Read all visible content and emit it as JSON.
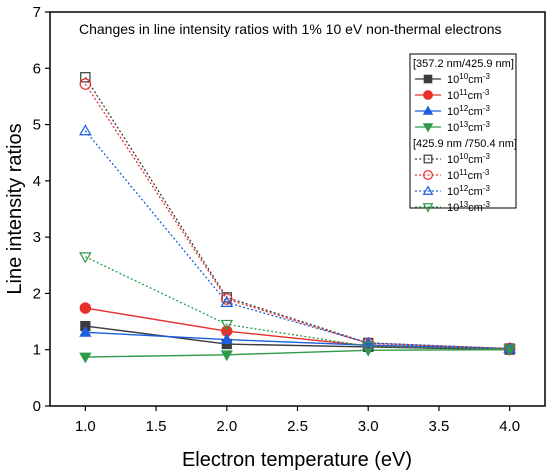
{
  "chart_data": {
    "type": "line",
    "title": "Changes in line intensity ratios with 1% 10 eV  non-thermal electrons",
    "xlabel": "Electron temperature (eV)",
    "ylabel": "Line intensity ratios",
    "xlim": [
      0.75,
      4.25
    ],
    "ylim": [
      0,
      7
    ],
    "xticks": [
      "1.0",
      "1.5",
      "2.0",
      "2.5",
      "3.0",
      "3.5",
      "4.0"
    ],
    "yticks": [
      "0",
      "1",
      "2",
      "3",
      "4",
      "5",
      "6",
      "7"
    ],
    "x": [
      1.0,
      2.0,
      3.0,
      4.0
    ],
    "grid": false,
    "legend_position": "top-right",
    "legend_groups": [
      {
        "header": "[357.2 nm/425.9 nm]",
        "series": [
          {
            "name": "10",
            "exp": "10",
            "unit": "cm",
            "unit_exp": "-3",
            "color": "#3c3c3c",
            "marker": "square",
            "filled": true,
            "dashed": false,
            "values": [
              1.42,
              1.1,
              1.05,
              1.0
            ]
          },
          {
            "name": "10",
            "exp": "11",
            "unit": "cm",
            "unit_exp": "-3",
            "color": "#e8302a",
            "marker": "circle",
            "filled": true,
            "dashed": false,
            "values": [
              1.74,
              1.33,
              1.07,
              1.02
            ]
          },
          {
            "name": "10",
            "exp": "12",
            "unit": "cm",
            "unit_exp": "-3",
            "color": "#1a5fe0",
            "marker": "triangle-up",
            "filled": true,
            "dashed": false,
            "values": [
              1.31,
              1.18,
              1.08,
              1.02
            ]
          },
          {
            "name": "10",
            "exp": "13",
            "unit": "cm",
            "unit_exp": "-3",
            "color": "#2e9a4a",
            "marker": "triangle-down",
            "filled": true,
            "dashed": false,
            "values": [
              0.87,
              0.91,
              0.99,
              1.0
            ]
          }
        ]
      },
      {
        "header": "[425.9 nm /750.4 nm]",
        "series": [
          {
            "name": "10",
            "exp": "10",
            "unit": "cm",
            "unit_exp": "-3",
            "color": "#3c3c3c",
            "marker": "square",
            "filled": false,
            "dashed": true,
            "values": [
              5.84,
              1.93,
              1.12,
              1.02
            ]
          },
          {
            "name": "10",
            "exp": "11",
            "unit": "cm",
            "unit_exp": "-3",
            "color": "#e8302a",
            "marker": "circle",
            "filled": false,
            "dashed": true,
            "values": [
              5.72,
              1.9,
              1.11,
              1.02
            ]
          },
          {
            "name": "10",
            "exp": "12",
            "unit": "cm",
            "unit_exp": "-3",
            "color": "#1a5fe0",
            "marker": "triangle-up",
            "filled": false,
            "dashed": true,
            "values": [
              4.89,
              1.84,
              1.12,
              1.02
            ]
          },
          {
            "name": "10",
            "exp": "13",
            "unit": "cm",
            "unit_exp": "-3",
            "color": "#2e9a4a",
            "marker": "triangle-down",
            "filled": false,
            "dashed": true,
            "values": [
              2.65,
              1.45,
              1.06,
              1.01
            ]
          }
        ]
      }
    ]
  }
}
